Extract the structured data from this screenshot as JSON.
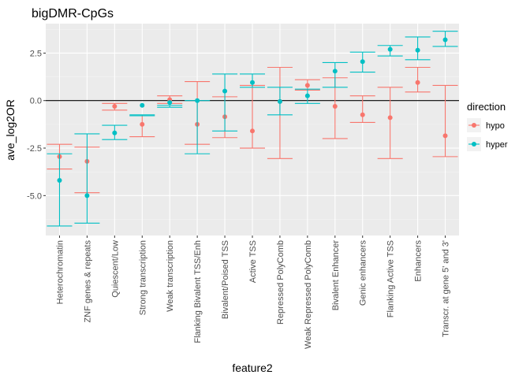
{
  "chart_data": {
    "type": "errorbar",
    "title": "bigDMR-CpGs",
    "xlabel": "feature2",
    "ylabel": "ave_log2OR",
    "ylim": [
      -7.1,
      4.05
    ],
    "yticks": [
      -5.0,
      -2.5,
      0.0,
      2.5
    ],
    "ytick_labels": [
      "-5.0",
      "-2.5",
      "0.0",
      "2.5"
    ],
    "grid": true,
    "reference_line": 0.0,
    "categories": [
      "Heterochromatin",
      "ZNF genes & repeats",
      "Quiescent/Low",
      "Strong transcription",
      "Weak transcription",
      "Flanking Bivalent TSS/Enh",
      "Bivalent/Poised TSS",
      "Active TSS",
      "Repressed PolyComb",
      "Weak Repressed PolyComb",
      "Bivalent Enhancer",
      "Genic enhancers",
      "Flanking Active TSS",
      "Enhancers",
      "Transcr. at gene 5' and 3'"
    ],
    "legend": {
      "title": "direction",
      "position": "right",
      "entries": [
        "hypo",
        "hyper"
      ]
    },
    "series": [
      {
        "name": "hypo",
        "color": "#F8766D",
        "values": [
          -2.95,
          -3.2,
          -0.3,
          -1.25,
          0.05,
          -1.25,
          -0.85,
          -1.6,
          -0.05,
          0.8,
          -0.3,
          -0.75,
          -0.9,
          0.95,
          -1.85
        ],
        "lower": [
          -3.6,
          -4.85,
          -0.5,
          -1.9,
          -0.15,
          -2.3,
          -1.95,
          -2.5,
          -3.05,
          0.55,
          -2.0,
          -1.15,
          -3.05,
          0.45,
          -2.95
        ],
        "upper": [
          -2.3,
          -2.45,
          -0.15,
          -0.8,
          0.25,
          1.0,
          0.2,
          0.8,
          1.75,
          1.1,
          1.2,
          0.25,
          0.7,
          1.75,
          0.8
        ]
      },
      {
        "name": "hyper",
        "color": "#00BFC4",
        "values": [
          -4.2,
          -5.0,
          -1.7,
          -0.25,
          -0.1,
          0.0,
          0.5,
          0.95,
          -0.05,
          0.25,
          1.55,
          2.05,
          2.7,
          2.65,
          3.2
        ],
        "lower": [
          -6.6,
          -6.45,
          -2.05,
          -0.8,
          -0.35,
          -2.8,
          -1.6,
          0.7,
          -0.75,
          -0.15,
          0.7,
          1.5,
          2.35,
          2.15,
          2.85
        ],
        "upper": [
          -2.8,
          -1.75,
          -1.3,
          -0.75,
          -0.25,
          0.0,
          1.4,
          1.4,
          0.7,
          0.6,
          2.0,
          2.55,
          2.9,
          3.35,
          3.65
        ]
      }
    ]
  }
}
